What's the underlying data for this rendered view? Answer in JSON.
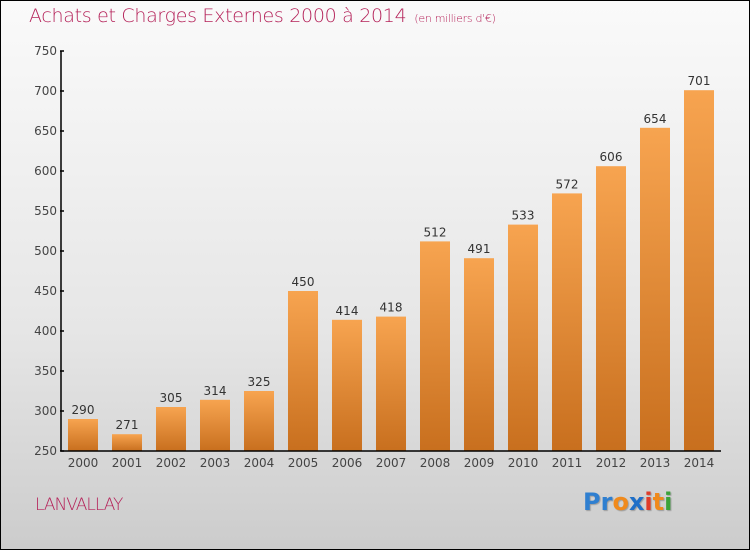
{
  "chart_data": {
    "type": "bar",
    "title": "Achats et Charges Externes 2000 à 2014",
    "subtitle": "(en milliers d'€)",
    "xlabel": "",
    "ylabel": "",
    "categories": [
      "2000",
      "2001",
      "2002",
      "2003",
      "2004",
      "2005",
      "2006",
      "2007",
      "2008",
      "2009",
      "2010",
      "2011",
      "2012",
      "2013",
      "2014"
    ],
    "values": [
      290,
      271,
      305,
      314,
      325,
      450,
      414,
      418,
      512,
      491,
      533,
      572,
      606,
      654,
      701
    ],
    "ylim": [
      250,
      750
    ],
    "yticks": [
      250,
      300,
      350,
      400,
      450,
      500,
      550,
      600,
      650,
      700,
      750
    ],
    "grid": false,
    "legend": "none",
    "bar_color_top": "#f7a450",
    "bar_color_bottom": "#c86f1e"
  },
  "footer": {
    "city": "LANVALLAY",
    "logo_letters": [
      {
        "ch": "P",
        "color": "#2f7fd0"
      },
      {
        "ch": "r",
        "color": "#2f7fd0"
      },
      {
        "ch": "o",
        "color": "#f08a1c"
      },
      {
        "ch": "x",
        "color": "#1f6fc8"
      },
      {
        "ch": "i",
        "color": "#e03c2a"
      },
      {
        "ch": "t",
        "color": "#f08a1c"
      },
      {
        "ch": "i",
        "color": "#3aa33a"
      }
    ]
  }
}
